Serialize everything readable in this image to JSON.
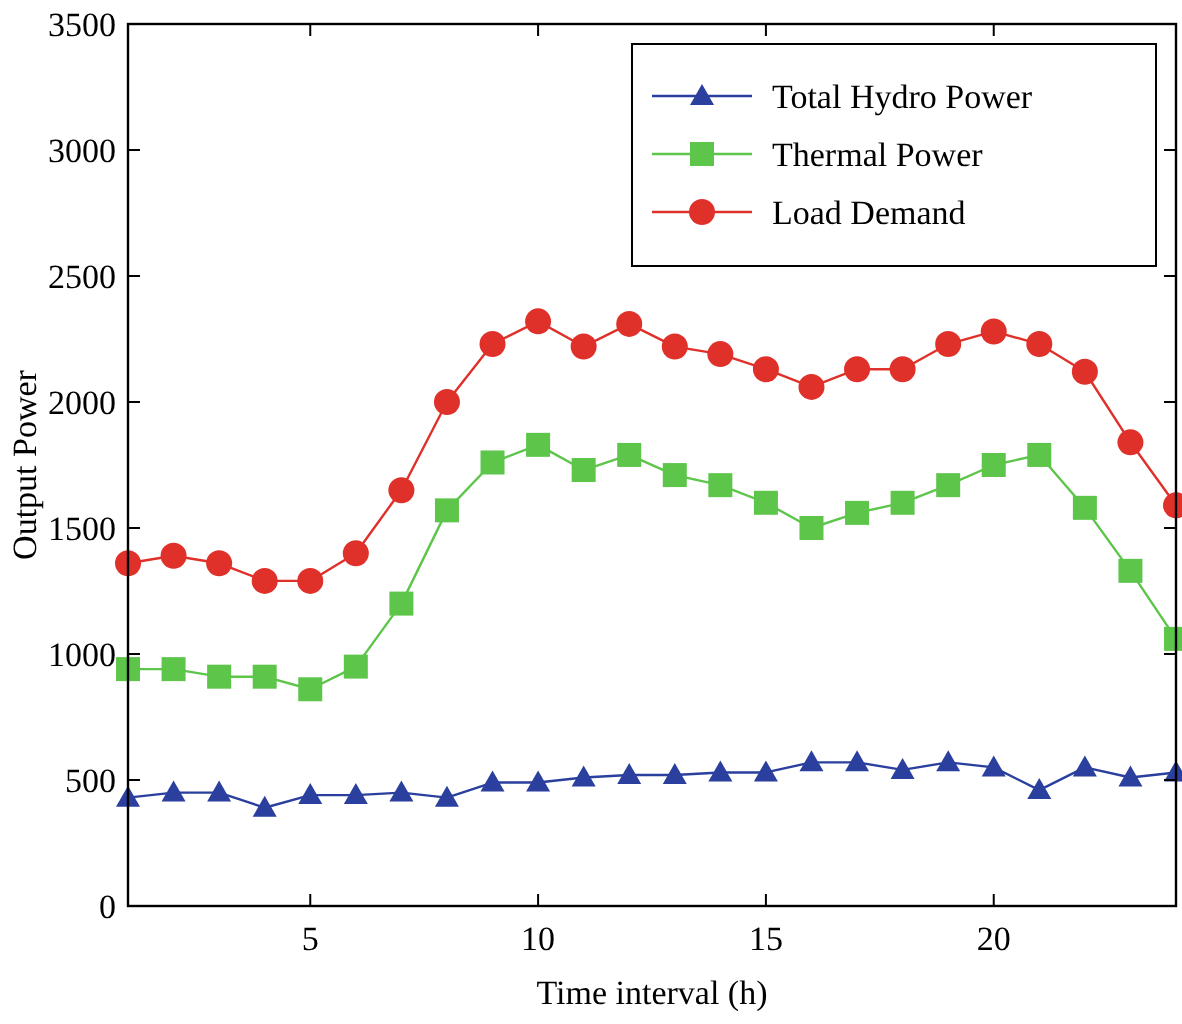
{
  "chart_data": {
    "type": "line",
    "xlabel": "Time interval (h)",
    "ylabel": "Output Power",
    "x": [
      1,
      2,
      3,
      4,
      5,
      6,
      7,
      8,
      9,
      10,
      11,
      12,
      13,
      14,
      15,
      16,
      17,
      18,
      19,
      20,
      21,
      22,
      23,
      24
    ],
    "xlim": [
      1,
      24
    ],
    "xticks": [
      5,
      10,
      15,
      20
    ],
    "ylim": [
      0,
      3500
    ],
    "yticks": [
      0,
      500,
      1000,
      1500,
      2000,
      2500,
      3000,
      3500
    ],
    "grid": false,
    "legend": "top right",
    "series": [
      {
        "name": "Total Hydro Power",
        "color": "#2a3f9e",
        "marker": "triangle",
        "values": [
          430,
          450,
          450,
          390,
          440,
          440,
          450,
          430,
          490,
          490,
          510,
          520,
          520,
          530,
          530,
          570,
          570,
          540,
          570,
          550,
          460,
          550,
          510,
          530
        ]
      },
      {
        "name": "Thermal Power",
        "color": "#5dc54a",
        "marker": "square",
        "values": [
          940,
          940,
          910,
          910,
          860,
          950,
          1200,
          1570,
          1760,
          1830,
          1730,
          1790,
          1710,
          1670,
          1600,
          1500,
          1560,
          1600,
          1670,
          1750,
          1790,
          1580,
          1330,
          1060
        ]
      },
      {
        "name": "Load Demand",
        "color": "#e0302a",
        "marker": "circle",
        "values": [
          1360,
          1390,
          1360,
          1290,
          1290,
          1400,
          1650,
          2000,
          2230,
          2320,
          2220,
          2310,
          2220,
          2190,
          2130,
          2060,
          2130,
          2130,
          2230,
          2280,
          2230,
          2120,
          1840,
          1590
        ]
      }
    ]
  }
}
